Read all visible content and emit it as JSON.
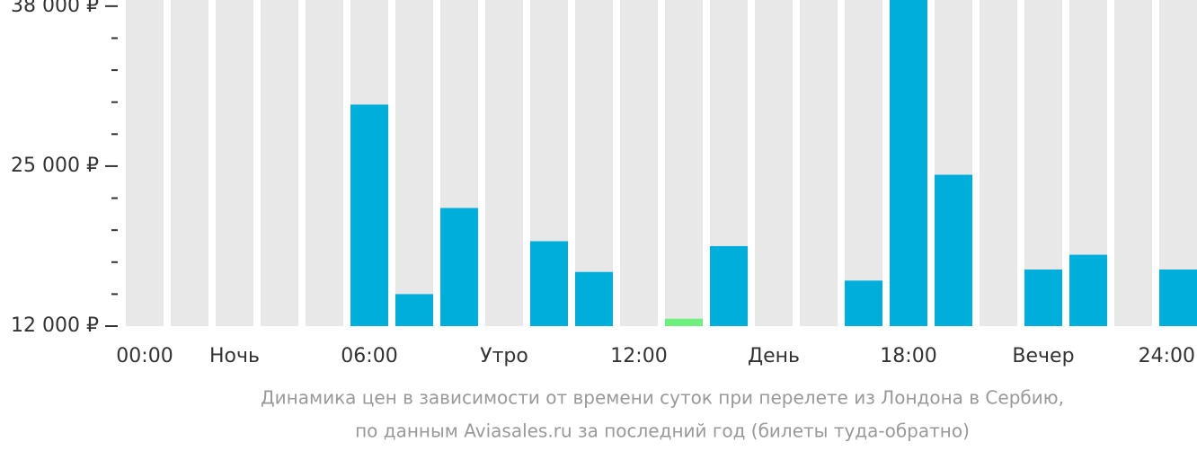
{
  "chart_data": {
    "type": "bar",
    "categories": [
      "00:00",
      null,
      "Ночь",
      null,
      null,
      "06:00",
      null,
      null,
      "Утро",
      null,
      null,
      "12:00",
      null,
      null,
      "День",
      null,
      null,
      "18:00",
      null,
      null,
      "Вечер",
      null,
      null,
      "24:00"
    ],
    "values": [
      null,
      null,
      null,
      null,
      null,
      30000,
      14600,
      21600,
      null,
      18900,
      16400,
      null,
      12600,
      18500,
      null,
      null,
      15700,
      38500,
      24300,
      null,
      16600,
      17800,
      null,
      16600
    ],
    "color": "#00aedb",
    "min_color": "#6ef07f",
    "background_color": "#e8e8e8",
    "ylim": [
      12000,
      38500
    ],
    "yticks": [
      {
        "value": 12000,
        "label": "12 000 ₽"
      },
      {
        "value": 25000,
        "label": "25 000 ₽"
      },
      {
        "value": 38000,
        "label": "38 000 ₽"
      }
    ],
    "minor_yticks": [
      14600,
      17200,
      19800,
      22400,
      27600,
      30200,
      32800,
      35400
    ],
    "caption": [
      "Динамика цен в зависимости от времени суток при перелете из Лондона в Сербию,",
      "по данным Aviasales.ru за последний год (билеты туда-обратно)"
    ]
  }
}
